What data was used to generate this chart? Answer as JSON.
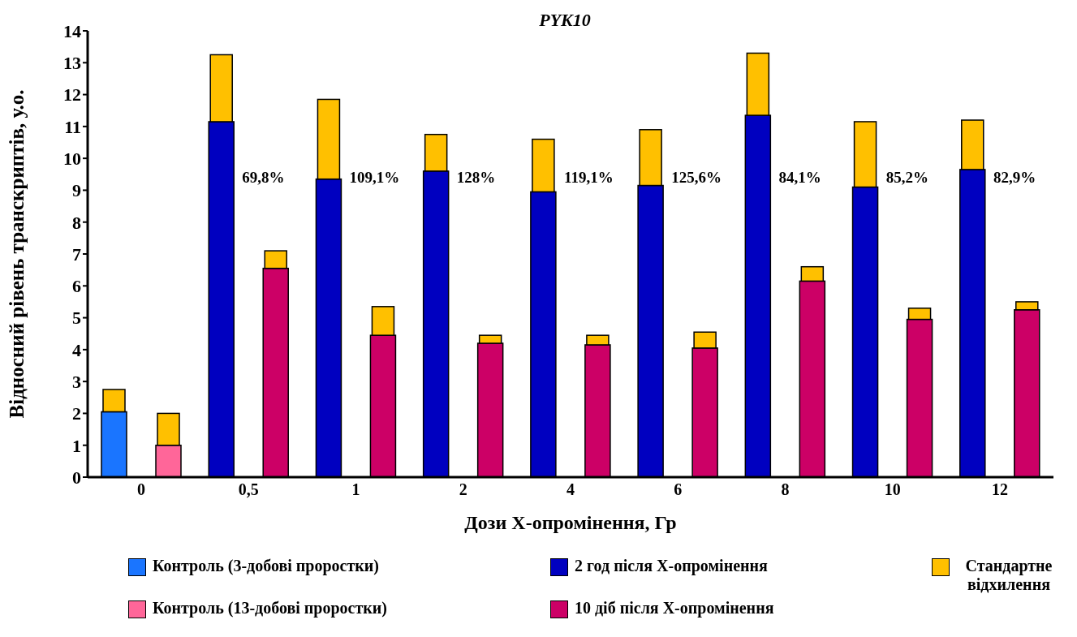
{
  "chart_data": {
    "type": "bar",
    "title": "PYK10",
    "xlabel": "Дози Х-опромінення, Гр",
    "ylabel": "Відносний рівень транскриптів, у.о.",
    "categories": [
      "0",
      "0,5",
      "1",
      "2",
      "4",
      "6",
      "8",
      "10",
      "12"
    ],
    "series": [
      {
        "name": "Контроль (3-добові проростки)",
        "color": "#1a75ff",
        "values": [
          2.05,
          null,
          null,
          null,
          null,
          null,
          null,
          null,
          null
        ]
      },
      {
        "name": "Контроль (13-добові проростки)",
        "color": "#ff6699",
        "values": [
          1.0,
          null,
          null,
          null,
          null,
          null,
          null,
          null,
          null
        ]
      },
      {
        "name": "2 год після Х-опромінення",
        "color": "#0000c0",
        "values": [
          null,
          11.15,
          9.35,
          9.6,
          8.95,
          9.15,
          11.35,
          9.1,
          9.65
        ]
      },
      {
        "name": "10 діб  після Х-опромінення",
        "color": "#cc0066",
        "values": [
          null,
          6.55,
          4.45,
          4.2,
          4.15,
          4.05,
          6.15,
          4.95,
          5.25
        ]
      },
      {
        "name": "Стандартне відхилення",
        "color": "#ffc000",
        "base": [
          2.05,
          11.15,
          9.35,
          9.6,
          8.95,
          9.15,
          11.35,
          9.1,
          9.65
        ],
        "values": [
          0.7,
          2.1,
          2.5,
          1.15,
          1.65,
          1.75,
          1.95,
          2.05,
          1.55
        ]
      },
      {
        "color": "#ffc000",
        "base": [
          1.0,
          6.55,
          4.45,
          4.2,
          4.15,
          4.05,
          6.15,
          4.95,
          5.25
        ],
        "values": [
          1.0,
          0.55,
          0.9,
          0.25,
          0.3,
          0.5,
          0.45,
          0.35,
          0.25
        ]
      }
    ],
    "ylim": [
      0,
      14
    ],
    "yticks": [
      0,
      1,
      2,
      3,
      4,
      5,
      6,
      7,
      8,
      9,
      10,
      11,
      12,
      13,
      14
    ],
    "grid": false,
    "legend": "bottom",
    "annotations": [
      "69,8%",
      "109,1%",
      "128%",
      "119,1%",
      "125,6%",
      "84,1%",
      "85,2%",
      "82,9%"
    ]
  }
}
